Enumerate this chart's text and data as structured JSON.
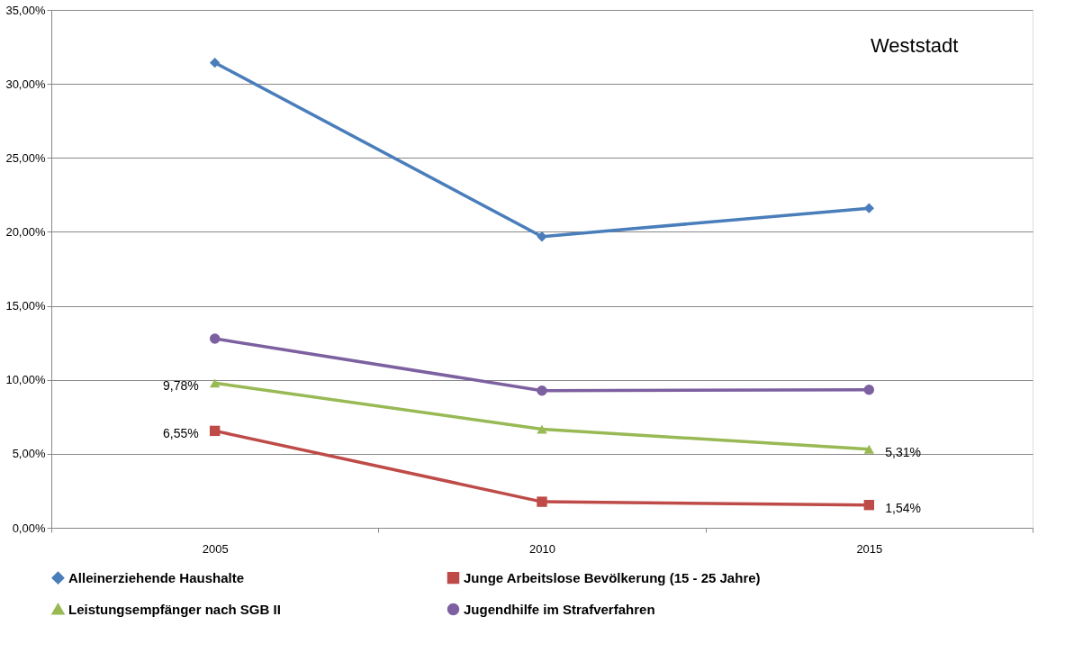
{
  "chart_data": {
    "type": "line",
    "annotations": [
      "Weststadt"
    ],
    "categories": [
      "2005",
      "2010",
      "2015"
    ],
    "series": [
      {
        "name": "Alleinerziehende Haushalte",
        "color": "#4a7ebb",
        "marker": "diamond",
        "values": [
          31.43,
          19.68,
          21.6
        ]
      },
      {
        "name": "Junge  Arbeitslose Bevölkerung (15 - 25 Jahre)",
        "color": "#be4b48",
        "marker": "square",
        "values": [
          6.55,
          1.76,
          1.54
        ],
        "value_labels": [
          "6,55%",
          null,
          "1,54%"
        ]
      },
      {
        "name": "Leistungsempfänger nach SGB II",
        "color": "#98b954",
        "marker": "triangle",
        "values": [
          9.78,
          6.66,
          5.31
        ],
        "value_labels": [
          "9,78%",
          null,
          "5,31%"
        ]
      },
      {
        "name": "Jugendhilfe im Strafverfahren",
        "color": "#7d60a0",
        "marker": "circle",
        "values": [
          12.78,
          9.27,
          9.33
        ]
      }
    ],
    "ylim": [
      0,
      35
    ],
    "yticks": [
      {
        "value": 0,
        "label": "0,00%"
      },
      {
        "value": 5,
        "label": "5,00%"
      },
      {
        "value": 10,
        "label": "10,00%"
      },
      {
        "value": 15,
        "label": "15,00%"
      },
      {
        "value": 20,
        "label": "20,00%"
      },
      {
        "value": 25,
        "label": "25,00%"
      },
      {
        "value": 30,
        "label": "30,00%"
      },
      {
        "value": 35,
        "label": "35,00%"
      }
    ],
    "grid": "y",
    "legend": "bottom",
    "line_style": "solid"
  }
}
